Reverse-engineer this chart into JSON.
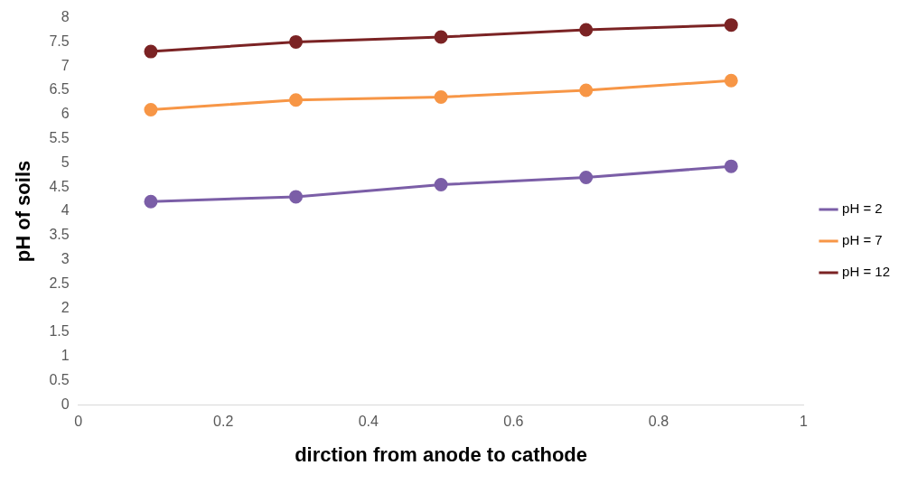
{
  "chart_data": {
    "type": "line",
    "xlabel": "dirction from anode to cathode",
    "ylabel": "pH of soils",
    "xlim": [
      0,
      1
    ],
    "xticks": [
      0,
      0.2,
      0.4,
      0.6,
      0.8,
      1
    ],
    "ylim": [
      0,
      8
    ],
    "yticks": [
      0,
      0.5,
      1,
      1.5,
      2,
      2.5,
      3,
      3.5,
      4,
      4.5,
      5,
      5.5,
      6,
      6.5,
      7,
      7.5,
      8
    ],
    "x": [
      0.1,
      0.3,
      0.5,
      0.7,
      0.9
    ],
    "series": [
      {
        "name": "pH = 2",
        "color": "#7b5ea7",
        "values": [
          4.2,
          4.3,
          4.55,
          4.7,
          4.93
        ]
      },
      {
        "name": "pH = 7",
        "color": "#f79646",
        "values": [
          6.1,
          6.3,
          6.36,
          6.5,
          6.7
        ]
      },
      {
        "name": "pH = 12",
        "color": "#7b2324",
        "values": [
          7.3,
          7.5,
          7.6,
          7.75,
          7.85
        ]
      }
    ],
    "grid": false,
    "legend": "right",
    "marker": "circle",
    "line_style": "solid"
  }
}
